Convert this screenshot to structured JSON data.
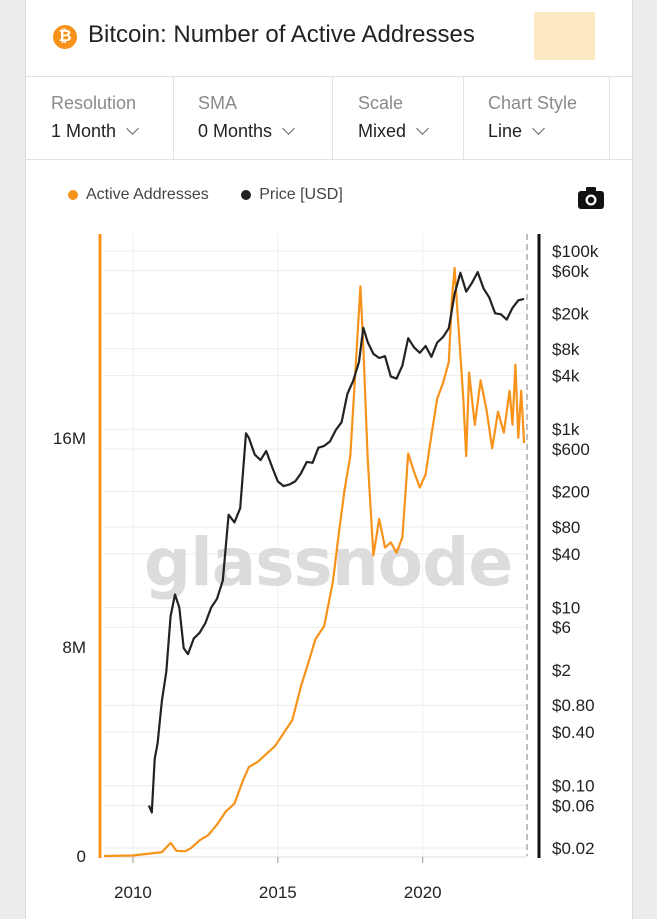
{
  "header": {
    "title": "Bitcoin: Number of Active Addresses",
    "coin_icon": "bitcoin-icon",
    "coin_symbol": "₿"
  },
  "controls": [
    {
      "label": "Resolution",
      "value": "1 Month"
    },
    {
      "label": "SMA",
      "value": "0 Months"
    },
    {
      "label": "Scale",
      "value": "Mixed"
    },
    {
      "label": "Chart Style",
      "value": "Line"
    }
  ],
  "legend": [
    {
      "name": "Active Addresses",
      "color": "#f7931a"
    },
    {
      "name": "Price [USD]",
      "color": "#222222"
    }
  ],
  "watermark": "glassnode",
  "chart_data": {
    "type": "line",
    "title": "",
    "xlabel": "",
    "ylabel": "",
    "x_ticks": [
      "2010",
      "2015",
      "2020"
    ],
    "x_tick_values": [
      2010,
      2015,
      2020
    ],
    "xlim": [
      2009.0,
      2023.6
    ],
    "left_axis": {
      "ticks": [
        "0",
        "8M",
        "16M"
      ],
      "tick_values": [
        0,
        8000000,
        16000000
      ],
      "ylim": [
        0,
        23800000
      ],
      "scale": "linear"
    },
    "right_axis": {
      "ticks": [
        "$100k",
        "$60k",
        "$20k",
        "$8k",
        "$4k",
        "$1k",
        "$600",
        "$200",
        "$80",
        "$40",
        "$10",
        "$6",
        "$2",
        "$0.80",
        "$0.40",
        "$0.10",
        "$0.06",
        "$0.02"
      ],
      "tick_values": [
        100000,
        60000,
        20000,
        8000,
        4000,
        1000,
        600,
        200,
        80,
        40,
        10,
        6,
        2,
        0.8,
        0.4,
        0.1,
        0.06,
        0.02
      ],
      "ylim": [
        0.02,
        100000
      ],
      "scale": "log"
    },
    "grid": true,
    "series": [
      {
        "name": "Active Addresses",
        "color": "#f7931a",
        "axis": "left",
        "x": [
          2009.0,
          2010.0,
          2011.0,
          2011.3,
          2011.5,
          2011.8,
          2012.0,
          2012.3,
          2012.6,
          2012.9,
          2013.2,
          2013.5,
          2013.8,
          2014.0,
          2014.3,
          2014.6,
          2014.9,
          2015.2,
          2015.5,
          2015.8,
          2016.0,
          2016.3,
          2016.6,
          2016.9,
          2017.1,
          2017.3,
          2017.5,
          2017.7,
          2017.85,
          2017.95,
          2018.1,
          2018.3,
          2018.5,
          2018.7,
          2018.9,
          2019.1,
          2019.3,
          2019.5,
          2019.7,
          2019.9,
          2020.1,
          2020.3,
          2020.5,
          2020.7,
          2020.9,
          2021.0,
          2021.1,
          2021.2,
          2021.4,
          2021.5,
          2021.6,
          2021.8,
          2022.0,
          2022.2,
          2022.4,
          2022.6,
          2022.8,
          2023.0,
          2023.1,
          2023.2,
          2023.3,
          2023.4,
          2023.5
        ],
        "values": [
          0,
          20000,
          150000,
          500000,
          200000,
          180000,
          300000,
          600000,
          800000,
          1200000,
          1700000,
          2000000,
          2900000,
          3400000,
          3600000,
          3900000,
          4200000,
          4700000,
          5200000,
          6500000,
          7200000,
          8300000,
          8800000,
          10500000,
          12300000,
          14000000,
          15300000,
          19000000,
          21800000,
          19500000,
          15200000,
          11500000,
          12900000,
          11800000,
          12000000,
          11600000,
          12200000,
          15400000,
          14700000,
          14100000,
          14600000,
          16100000,
          17500000,
          18100000,
          18900000,
          21200000,
          22500000,
          20800000,
          17500000,
          15300000,
          18500000,
          16500000,
          18200000,
          17100000,
          15600000,
          17000000,
          16200000,
          17800000,
          16500000,
          18800000,
          16000000,
          17800000,
          15800000
        ]
      },
      {
        "name": "Price [USD]",
        "color": "#222222",
        "axis": "right",
        "x": [
          2010.55,
          2010.65,
          2010.75,
          2010.85,
          2011.0,
          2011.15,
          2011.3,
          2011.45,
          2011.6,
          2011.75,
          2011.9,
          2012.1,
          2012.3,
          2012.5,
          2012.7,
          2012.9,
          2013.1,
          2013.3,
          2013.5,
          2013.7,
          2013.9,
          2014.0,
          2014.2,
          2014.4,
          2014.6,
          2014.8,
          2015.0,
          2015.2,
          2015.4,
          2015.6,
          2015.8,
          2016.0,
          2016.2,
          2016.4,
          2016.6,
          2016.8,
          2017.0,
          2017.2,
          2017.4,
          2017.6,
          2017.8,
          2017.95,
          2018.1,
          2018.3,
          2018.5,
          2018.7,
          2018.9,
          2019.1,
          2019.3,
          2019.5,
          2019.7,
          2019.9,
          2020.1,
          2020.3,
          2020.5,
          2020.7,
          2020.9,
          2021.1,
          2021.3,
          2021.5,
          2021.7,
          2021.9,
          2022.1,
          2022.3,
          2022.5,
          2022.7,
          2022.9,
          2023.1,
          2023.3,
          2023.5
        ],
        "values": [
          0.06,
          0.05,
          0.2,
          0.3,
          0.9,
          1.9,
          8,
          14,
          10,
          3.5,
          3.0,
          4.5,
          5.2,
          6.7,
          10,
          12.5,
          20,
          110,
          90,
          130,
          900,
          800,
          520,
          450,
          570,
          380,
          260,
          230,
          240,
          260,
          320,
          430,
          420,
          620,
          650,
          730,
          980,
          1200,
          2500,
          3500,
          5700,
          13800,
          9500,
          7000,
          6300,
          6600,
          3900,
          3700,
          5200,
          10500,
          8300,
          7200,
          8600,
          6500,
          9400,
          10800,
          13600,
          33000,
          57000,
          35000,
          44000,
          58000,
          38000,
          30000,
          20000,
          19500,
          17000,
          23000,
          28000,
          29000
        ]
      }
    ]
  }
}
